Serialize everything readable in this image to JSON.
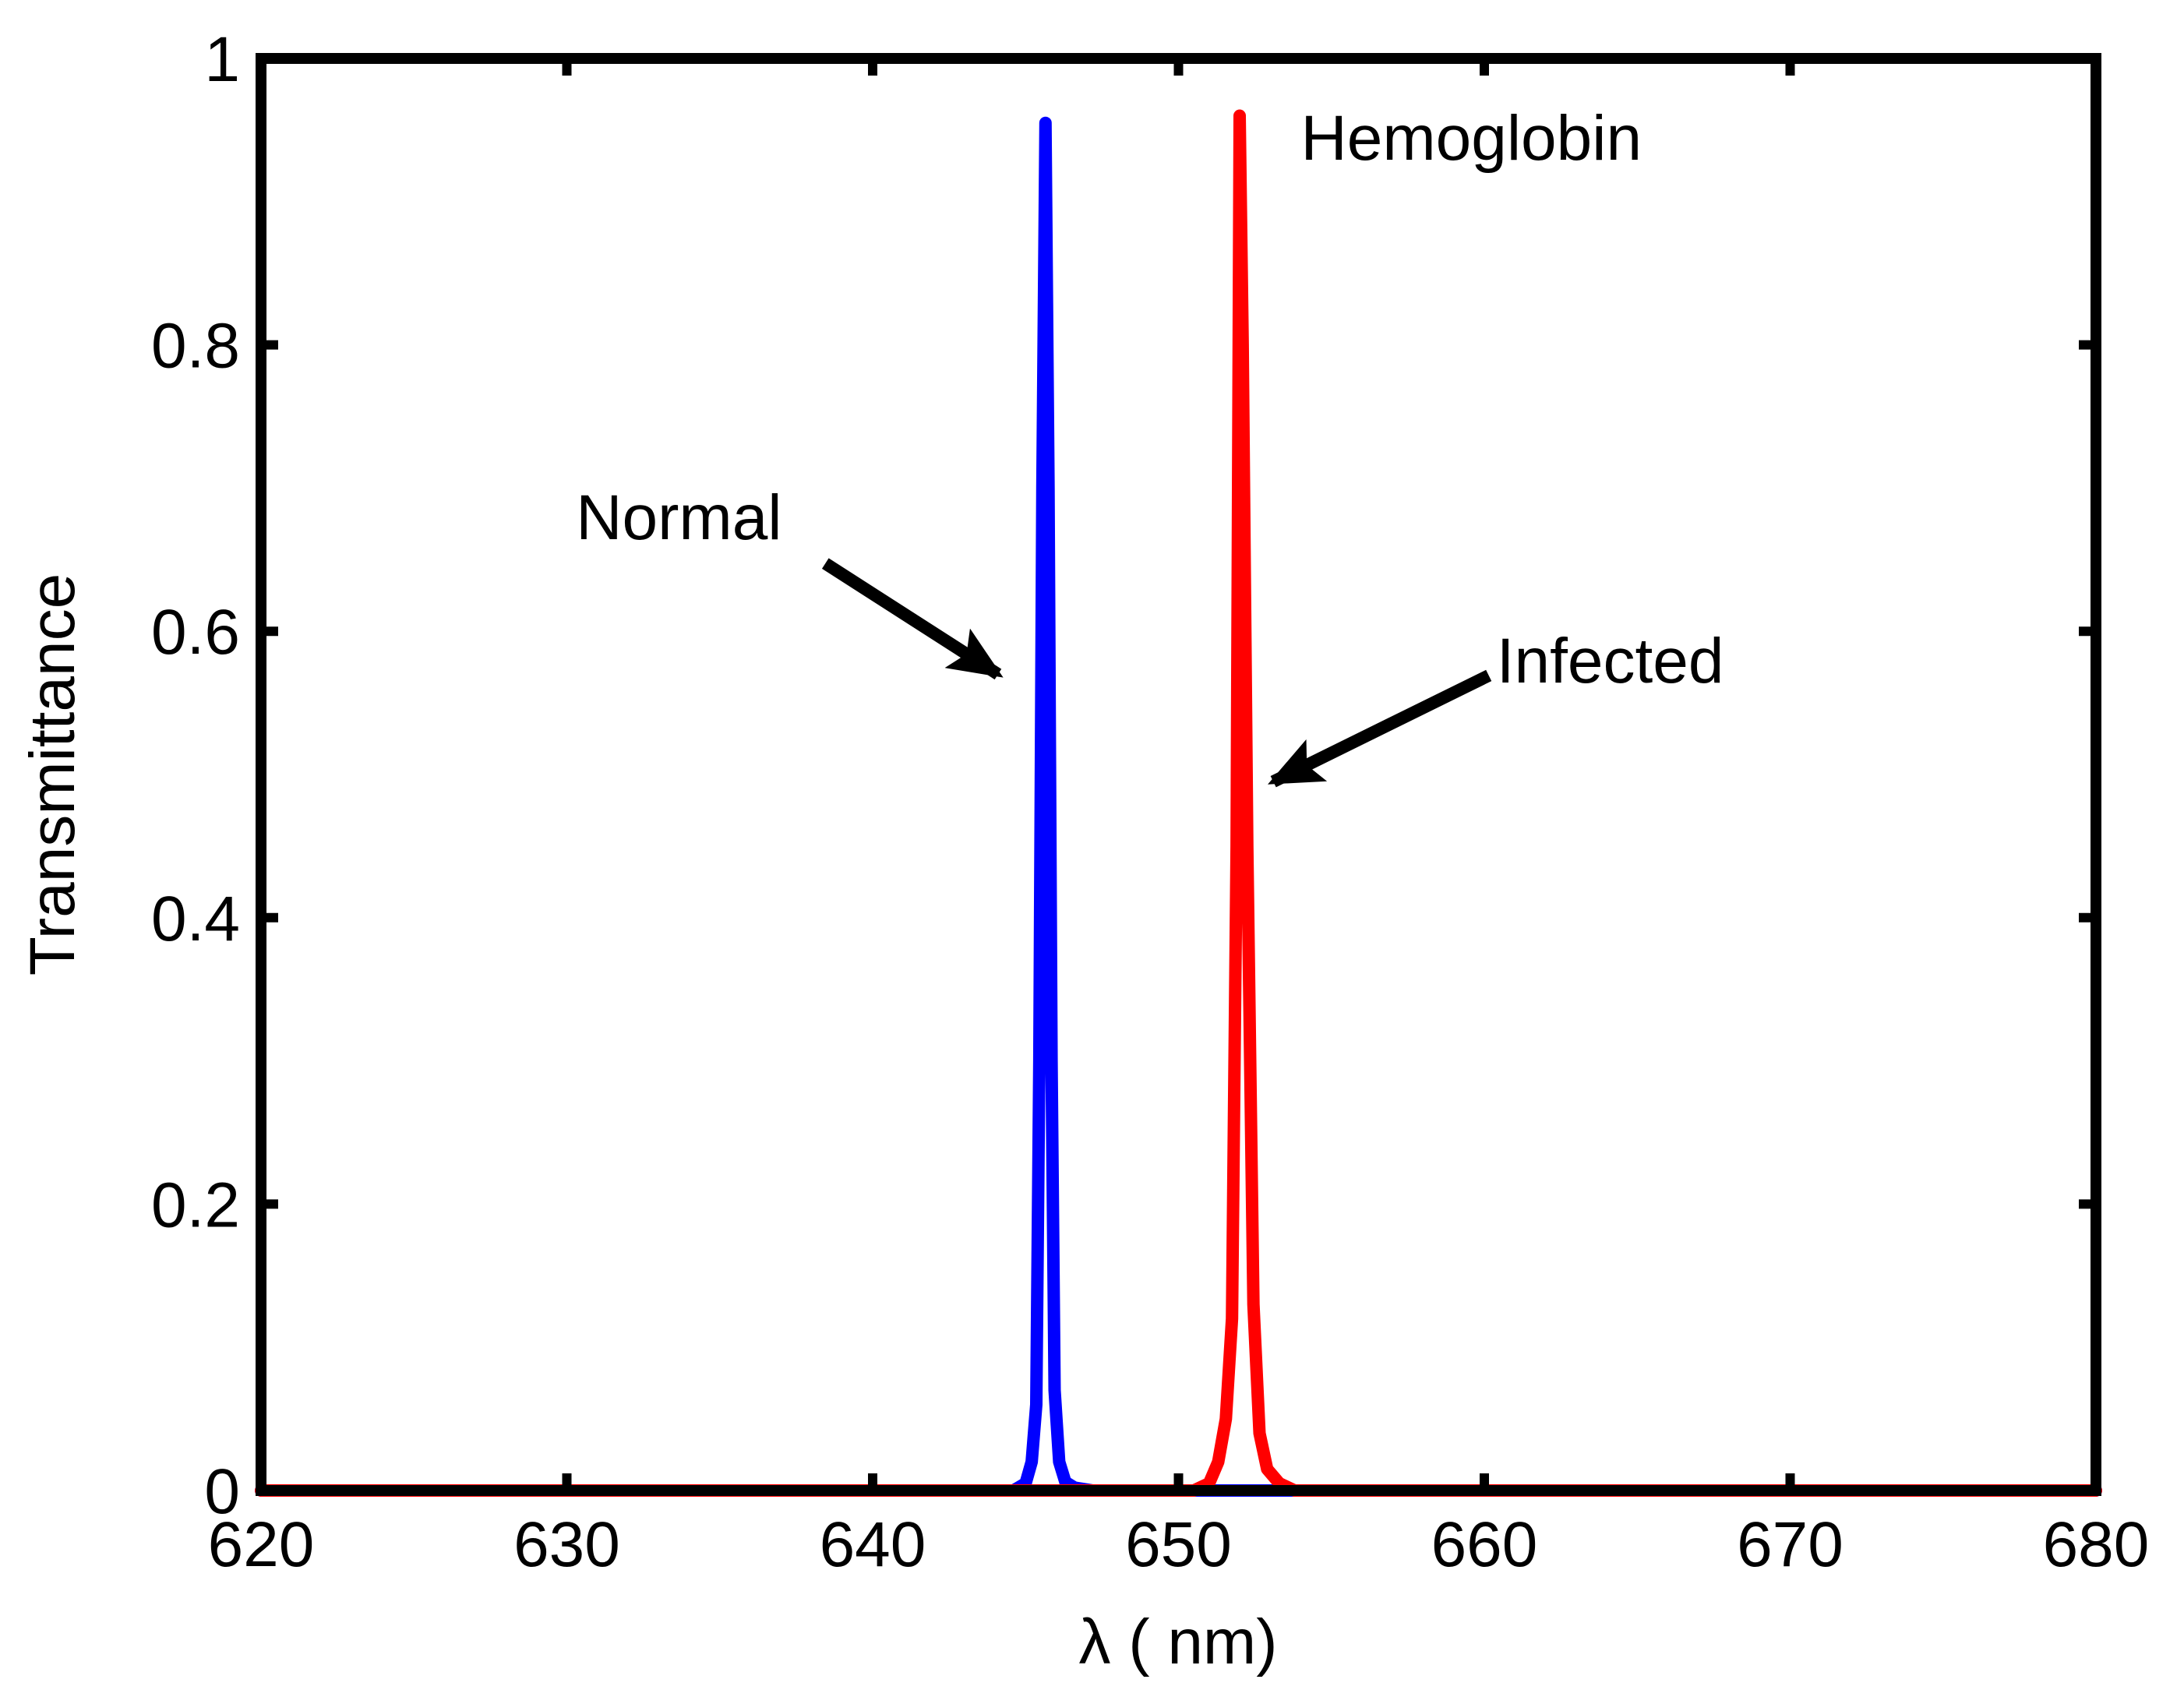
{
  "chart_data": {
    "type": "line",
    "title": "",
    "xlabel": "λ ( nm)",
    "ylabel": "Transmittance",
    "xlim": [
      620,
      680
    ],
    "ylim": [
      0,
      1
    ],
    "xticks": [
      620,
      630,
      640,
      650,
      660,
      670,
      680
    ],
    "yticks": [
      0,
      0.2,
      0.4,
      0.6,
      0.8,
      1
    ],
    "ytick_labels": [
      "0",
      "0.2",
      "0.4",
      "0.6",
      "0.8",
      "1"
    ],
    "grid": false,
    "series": [
      {
        "name": "Normal",
        "color": "#0000ff",
        "x": [
          620,
          644.6,
          645.0,
          645.2,
          645.35,
          645.45,
          645.55,
          645.65,
          645.75,
          645.85,
          645.95,
          646.1,
          646.3,
          646.6,
          647.2,
          680
        ],
        "y": [
          0,
          0,
          0.005,
          0.02,
          0.06,
          0.3,
          0.7,
          0.955,
          0.7,
          0.3,
          0.07,
          0.02,
          0.006,
          0.002,
          0,
          0
        ]
      },
      {
        "name": "Infected",
        "color": "#ff0000",
        "x": [
          620,
          650.5,
          651.0,
          651.3,
          651.55,
          651.75,
          651.9,
          652.0,
          652.1,
          652.25,
          652.45,
          652.65,
          652.9,
          653.3,
          653.8,
          680
        ],
        "y": [
          0,
          0,
          0.005,
          0.02,
          0.05,
          0.12,
          0.45,
          0.96,
          0.8,
          0.45,
          0.13,
          0.04,
          0.015,
          0.005,
          0,
          0
        ]
      }
    ],
    "annotations": [
      {
        "text": "Hemoglobin",
        "x": 654,
        "y": 0.945
      },
      {
        "text": "Normal",
        "x": 630.3,
        "y": 0.68,
        "arrow_to": [
          644.1,
          0.57
        ]
      },
      {
        "text": "Infected",
        "x": 660.4,
        "y": 0.58,
        "arrow_to": [
          653.1,
          0.495
        ]
      }
    ]
  }
}
